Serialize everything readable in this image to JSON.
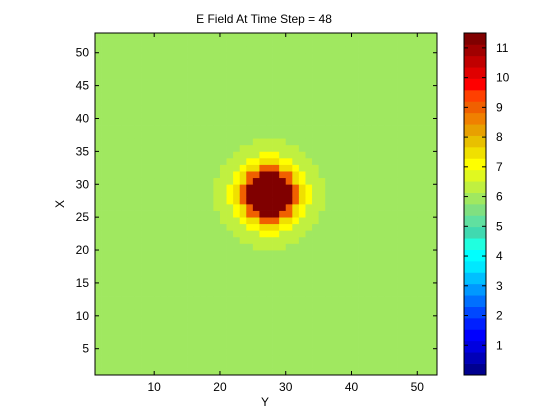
{
  "chart_data": {
    "type": "heatmap",
    "title": "E Field At Time Step = 48",
    "xlabel": "Y",
    "ylabel": "X",
    "xlim": [
      1,
      53
    ],
    "ylim": [
      1,
      53
    ],
    "x_ticks": [
      10,
      20,
      30,
      40,
      50
    ],
    "y_ticks": [
      5,
      10,
      15,
      20,
      25,
      30,
      35,
      40,
      45,
      50
    ],
    "grid": false,
    "colorbar": {
      "range": [
        0,
        11.5
      ],
      "ticks": [
        1,
        2,
        3,
        4,
        5,
        6,
        7,
        8,
        9,
        10,
        11
      ],
      "colors": [
        "#00008f",
        "#0000b8",
        "#0000e0",
        "#0000ff",
        "#0020ff",
        "#0048ff",
        "#0070ff",
        "#0098ff",
        "#00c0ff",
        "#00e8ff",
        "#00ffff",
        "#20ffdf",
        "#40d9b0",
        "#60e0a0",
        "#80e080",
        "#a0e860",
        "#c0f040",
        "#e0f820",
        "#ffff00",
        "#f0e000",
        "#e8c000",
        "#e8a000",
        "#f08000",
        "#f06000",
        "#ff4000",
        "#ff0000",
        "#e00000",
        "#c00000",
        "#a00000",
        "#800000"
      ]
    },
    "field": {
      "background_value": 6.1,
      "center_y": 27.5,
      "center_x": 28.5,
      "levels": [
        {
          "min_radius": 0.0,
          "max_radius": 3.5,
          "value": 11.5
        },
        {
          "min_radius": 3.5,
          "max_radius": 4.4,
          "value": 9.2
        },
        {
          "min_radius": 4.4,
          "max_radius": 5.2,
          "value": 7.4
        },
        {
          "min_radius": 5.2,
          "max_radius": 6.2,
          "value": 6.9
        },
        {
          "min_radius": 6.2,
          "max_radius": 7.4,
          "value": 6.5
        },
        {
          "min_radius": 7.4,
          "max_radius": 8.4,
          "value": 6.3
        }
      ]
    }
  }
}
